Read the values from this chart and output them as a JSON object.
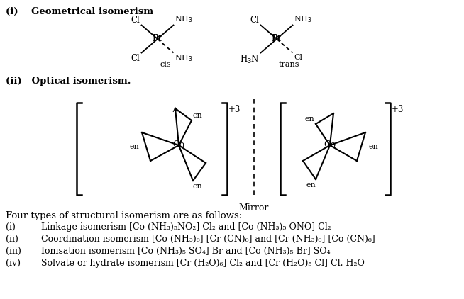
{
  "bg_color": "#ffffff",
  "title_i": "(i)    Geometrical isomerism",
  "title_ii": "(ii)   Optical isomerism.",
  "mirror_label": "Mirror",
  "four_types_header": "Four types of structural isomerism are as follows:",
  "line_items": [
    [
      "(i)",
      "Linkage isomerism [Co (NH₃)₅NO₂] Cl₂ and [Co (NH₃)₅ ONO] Cl₂"
    ],
    [
      "(ii)",
      "Coordination isomerism [Co (NH₃)₆] [Cr (CN)₆] and [Cr (NH₃)₆] [Co (CN)₆]"
    ],
    [
      "(iii)",
      "Ionisation isomerism [Co (NH₃)₅ SO₄] Br and [Co (NH₃)₅ Br] SO₄"
    ],
    [
      "(iv)",
      "Solvate or hydrate isomerism [Cr (H₂O)₆] Cl₂ and [Cr (H₂O)₅ Cl] Cl. H₂O"
    ]
  ]
}
